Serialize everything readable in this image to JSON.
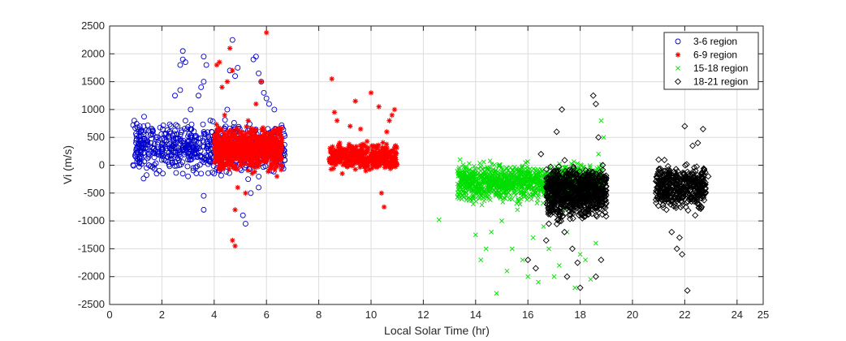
{
  "chart_data": {
    "type": "scatter",
    "title": "",
    "xlabel": "Local Solar Time (hr)",
    "ylabel": "Vi (m/s)",
    "xlim": [
      0,
      25
    ],
    "ylim": [
      -2500,
      2500
    ],
    "grid": true,
    "legend_position": "top-right",
    "x_ticks": [
      "0",
      "2",
      "4",
      "6",
      "8",
      "10",
      "12",
      "14",
      "16",
      "18",
      "20",
      "22",
      "24",
      "25"
    ],
    "y_ticks": [
      "2500",
      "2000",
      "1500",
      "1000",
      "500",
      "0",
      "-500",
      "-1000",
      "-1500",
      "-2000",
      "-2500"
    ],
    "series": [
      {
        "name": "3-6 region",
        "marker": "circle",
        "color": "#0000cc",
        "points": [
          [
            0.9,
            720
          ],
          [
            1.1,
            640
          ],
          [
            1.2,
            600
          ],
          [
            1.3,
            700
          ],
          [
            1.5,
            620
          ],
          [
            1.6,
            560
          ],
          [
            1.6,
            480
          ],
          [
            1.0,
            150
          ],
          [
            1.5,
            0
          ],
          [
            1.8,
            -150
          ],
          [
            1.9,
            -100
          ],
          [
            2.0,
            200
          ],
          [
            2.1,
            450
          ],
          [
            2.2,
            300
          ],
          [
            2.3,
            180
          ],
          [
            2.3,
            600
          ],
          [
            2.4,
            50
          ],
          [
            2.5,
            1250
          ],
          [
            2.5,
            620
          ],
          [
            2.6,
            700
          ],
          [
            2.7,
            1350
          ],
          [
            2.7,
            1800
          ],
          [
            2.8,
            1900
          ],
          [
            2.8,
            2050
          ],
          [
            2.9,
            800
          ],
          [
            2.9,
            1850
          ],
          [
            3.0,
            100
          ],
          [
            3.0,
            -200
          ],
          [
            3.1,
            1000
          ],
          [
            3.2,
            400
          ],
          [
            3.3,
            300
          ],
          [
            3.4,
            1250
          ],
          [
            3.5,
            1400
          ],
          [
            3.5,
            -150
          ],
          [
            3.6,
            1500
          ],
          [
            3.6,
            1950
          ],
          [
            3.7,
            1800
          ],
          [
            3.6,
            -550
          ],
          [
            3.6,
            -800
          ],
          [
            3.8,
            100
          ],
          [
            3.9,
            600
          ],
          [
            4.0,
            -150
          ],
          [
            4.2,
            -100
          ],
          [
            4.5,
            1000
          ],
          [
            4.6,
            1700
          ],
          [
            4.7,
            2250
          ],
          [
            4.8,
            1600
          ],
          [
            4.9,
            1750
          ],
          [
            5.1,
            -900
          ],
          [
            5.2,
            -1050
          ],
          [
            5.4,
            -500
          ],
          [
            5.5,
            1900
          ],
          [
            5.6,
            1950
          ],
          [
            5.7,
            1650
          ],
          [
            5.8,
            1500
          ],
          [
            5.9,
            1300
          ],
          [
            6.0,
            1200
          ],
          [
            6.1,
            1100
          ],
          [
            6.3,
            1000
          ],
          [
            6.5,
            600
          ],
          [
            6.6,
            0
          ],
          [
            2.2,
            150
          ],
          [
            2.6,
            320
          ],
          [
            3.0,
            520
          ],
          [
            3.2,
            -50
          ],
          [
            4.1,
            350
          ],
          [
            4.4,
            650
          ],
          [
            5.0,
            420
          ],
          [
            5.3,
            -250
          ],
          [
            5.7,
            -400
          ],
          [
            6.2,
            -100
          ]
        ]
      },
      {
        "name": "6-9 region",
        "marker": "asterisk",
        "color": "#ff0000",
        "points": [
          [
            4.0,
            400
          ],
          [
            4.1,
            1800
          ],
          [
            4.2,
            1850
          ],
          [
            4.3,
            1400
          ],
          [
            4.4,
            900
          ],
          [
            4.5,
            1500
          ],
          [
            4.6,
            2100
          ],
          [
            4.7,
            1700
          ],
          [
            4.7,
            -1350
          ],
          [
            4.8,
            -1450
          ],
          [
            4.8,
            -800
          ],
          [
            4.9,
            -400
          ],
          [
            5.0,
            600
          ],
          [
            5.2,
            -500
          ],
          [
            5.3,
            800
          ],
          [
            5.6,
            1100
          ],
          [
            5.8,
            1500
          ],
          [
            6.0,
            2380
          ],
          [
            6.2,
            500
          ],
          [
            6.4,
            -200
          ],
          [
            6.6,
            0
          ],
          [
            8.5,
            1550
          ],
          [
            8.6,
            950
          ],
          [
            8.7,
            800
          ],
          [
            8.8,
            400
          ],
          [
            8.9,
            -150
          ],
          [
            9.0,
            200
          ],
          [
            9.2,
            700
          ],
          [
            9.4,
            1150
          ],
          [
            9.6,
            650
          ],
          [
            9.8,
            -100
          ],
          [
            10.0,
            1300
          ],
          [
            10.2,
            300
          ],
          [
            10.3,
            1050
          ],
          [
            10.4,
            -500
          ],
          [
            10.5,
            -750
          ],
          [
            10.6,
            600
          ],
          [
            10.7,
            800
          ],
          [
            10.8,
            900
          ],
          [
            10.9,
            1000
          ],
          [
            4.5,
            200
          ],
          [
            5.4,
            150
          ],
          [
            6.1,
            300
          ],
          [
            8.4,
            100
          ],
          [
            9.5,
            250
          ],
          [
            10.1,
            150
          ]
        ]
      },
      {
        "name": "15-18 region",
        "marker": "x",
        "color": "#00dd00",
        "points": [
          [
            12.6,
            -980
          ],
          [
            13.4,
            100
          ],
          [
            13.6,
            -200
          ],
          [
            13.8,
            -600
          ],
          [
            14.0,
            -1250
          ],
          [
            14.2,
            -1700
          ],
          [
            14.4,
            -1500
          ],
          [
            14.6,
            -1200
          ],
          [
            14.8,
            -2300
          ],
          [
            15.0,
            -1000
          ],
          [
            15.2,
            -1900
          ],
          [
            15.4,
            -1500
          ],
          [
            15.6,
            -800
          ],
          [
            15.8,
            -1700
          ],
          [
            16.0,
            -2000
          ],
          [
            16.2,
            -1300
          ],
          [
            16.4,
            -2100
          ],
          [
            16.6,
            -1100
          ],
          [
            16.8,
            -1500
          ],
          [
            17.0,
            -2000
          ],
          [
            17.2,
            -1800
          ],
          [
            17.5,
            -1200
          ],
          [
            17.8,
            -2200
          ],
          [
            18.0,
            -1600
          ],
          [
            18.2,
            -1700
          ],
          [
            18.4,
            -2050
          ],
          [
            18.6,
            -1400
          ],
          [
            18.8,
            800
          ],
          [
            18.9,
            500
          ],
          [
            13.9,
            -300
          ],
          [
            14.5,
            -600
          ],
          [
            15.1,
            -400
          ],
          [
            15.7,
            -700
          ],
          [
            16.3,
            -500
          ],
          [
            16.9,
            -300
          ],
          [
            17.4,
            -800
          ],
          [
            18.1,
            -300
          ],
          [
            18.7,
            200
          ]
        ]
      },
      {
        "name": "18-21 region",
        "marker": "diamond",
        "color": "#000000",
        "points": [
          [
            16.0,
            -1700
          ],
          [
            16.3,
            -1850
          ],
          [
            16.5,
            200
          ],
          [
            16.7,
            -1350
          ],
          [
            16.8,
            -1050
          ],
          [
            16.9,
            -600
          ],
          [
            17.0,
            -100
          ],
          [
            17.1,
            600
          ],
          [
            17.3,
            1000
          ],
          [
            17.4,
            -1200
          ],
          [
            17.5,
            -2000
          ],
          [
            17.7,
            -1500
          ],
          [
            17.9,
            -1750
          ],
          [
            18.0,
            -2200
          ],
          [
            18.2,
            -800
          ],
          [
            18.3,
            -300
          ],
          [
            18.5,
            1250
          ],
          [
            18.6,
            1100
          ],
          [
            18.7,
            500
          ],
          [
            18.8,
            -1700
          ],
          [
            18.6,
            -2000
          ],
          [
            21.0,
            100
          ],
          [
            21.1,
            -500
          ],
          [
            21.3,
            -800
          ],
          [
            21.5,
            -1200
          ],
          [
            21.7,
            -1500
          ],
          [
            21.8,
            -1300
          ],
          [
            22.0,
            700
          ],
          [
            22.1,
            -2250
          ],
          [
            22.2,
            -600
          ],
          [
            22.3,
            350
          ],
          [
            22.5,
            400
          ],
          [
            22.6,
            -300
          ],
          [
            22.7,
            650
          ],
          [
            22.9,
            -200
          ],
          [
            21.9,
            -1600
          ],
          [
            22.4,
            -900
          ],
          [
            21.2,
            -200
          ],
          [
            21.6,
            -700
          ],
          [
            20.9,
            -500
          ]
        ]
      }
    ],
    "dense_bands": [
      {
        "series": 0,
        "x": [
          0.9,
          6.7
        ],
        "y": [
          -300,
          900
        ],
        "count": 700,
        "seed": 11
      },
      {
        "series": 1,
        "x": [
          4.0,
          6.6
        ],
        "y": [
          -200,
          800
        ],
        "count": 700,
        "seed": 23
      },
      {
        "series": 1,
        "x": [
          8.4,
          11.0
        ],
        "y": [
          -150,
          450
        ],
        "count": 420,
        "seed": 37
      },
      {
        "series": 2,
        "x": [
          13.3,
          18.9
        ],
        "y": [
          -750,
          120
        ],
        "count": 1300,
        "seed": 41
      },
      {
        "series": 3,
        "x": [
          16.7,
          19.0
        ],
        "y": [
          -1100,
          150
        ],
        "count": 800,
        "seed": 53
      },
      {
        "series": 3,
        "x": [
          20.9,
          22.8
        ],
        "y": [
          -900,
          150
        ],
        "count": 450,
        "seed": 67
      }
    ]
  }
}
